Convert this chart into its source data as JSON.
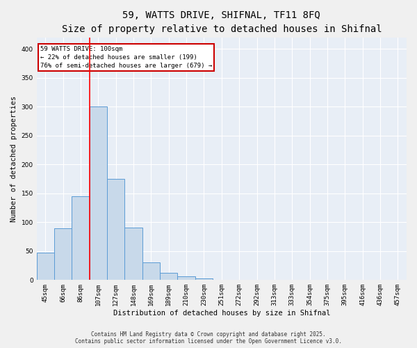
{
  "title_line1": "59, WATTS DRIVE, SHIFNAL, TF11 8FQ",
  "title_line2": "Size of property relative to detached houses in Shifnal",
  "xlabel": "Distribution of detached houses by size in Shifnal",
  "ylabel": "Number of detached properties",
  "categories": [
    "45sqm",
    "66sqm",
    "86sqm",
    "107sqm",
    "127sqm",
    "148sqm",
    "169sqm",
    "189sqm",
    "210sqm",
    "230sqm",
    "251sqm",
    "272sqm",
    "292sqm",
    "313sqm",
    "333sqm",
    "354sqm",
    "375sqm",
    "395sqm",
    "416sqm",
    "436sqm",
    "457sqm"
  ],
  "values": [
    47,
    89,
    145,
    300,
    175,
    91,
    30,
    13,
    6,
    3,
    1,
    0,
    0,
    0,
    0,
    0,
    1,
    0,
    0,
    0,
    1
  ],
  "bar_color": "#c8d9ea",
  "bar_edge_color": "#5b9bd5",
  "background_color": "#e8eef6",
  "grid_color": "#ffffff",
  "red_line_index": 3,
  "annotation_text": "59 WATTS DRIVE: 100sqm\n← 22% of detached houses are smaller (199)\n76% of semi-detached houses are larger (679) →",
  "annotation_box_color": "#ffffff",
  "annotation_box_edge": "#cc0000",
  "ylim": [
    0,
    420
  ],
  "yticks": [
    0,
    50,
    100,
    150,
    200,
    250,
    300,
    350,
    400
  ],
  "footer_line1": "Contains HM Land Registry data © Crown copyright and database right 2025.",
  "footer_line2": "Contains public sector information licensed under the Open Government Licence v3.0.",
  "fig_bg": "#f0f0f0",
  "title_fontsize": 10,
  "subtitle_fontsize": 9,
  "axis_label_fontsize": 7.5,
  "tick_fontsize": 6.5,
  "annotation_fontsize": 6.5,
  "footer_fontsize": 5.5
}
